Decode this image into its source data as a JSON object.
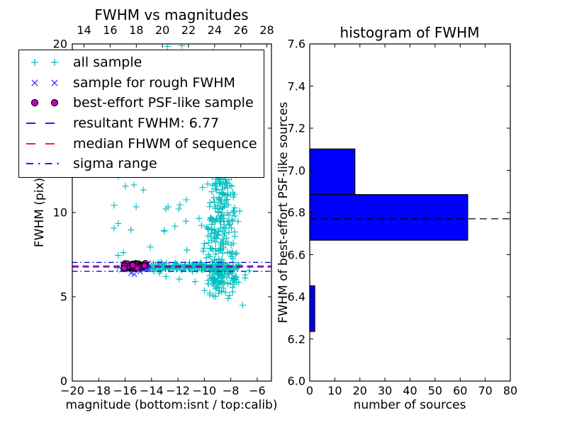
{
  "chart_data": [
    {
      "type": "scatter",
      "title": "FWHM vs magnitudes",
      "xlabel": "magnitude (bottom:isnt / top:calib)",
      "ylabel": "FWHM (pix)",
      "xlim": [
        -20,
        -4.92
      ],
      "ylim": [
        0,
        20
      ],
      "top_xlim": [
        13.1,
        28.35
      ],
      "grid": false,
      "x_ticks": {
        "values": [
          -20,
          -18,
          -16,
          -14,
          -12,
          -10,
          -8,
          -6
        ],
        "labels": [
          "−20",
          "−18",
          "−16",
          "−14",
          "−12",
          "−10",
          "−8",
          "−6"
        ]
      },
      "top_x_ticks": {
        "values": [
          14,
          16,
          18,
          20,
          22,
          24,
          26,
          28
        ],
        "labels": [
          "14",
          "16",
          "18",
          "20",
          "22",
          "24",
          "26",
          "28"
        ]
      },
      "y_ticks": {
        "values": [
          0,
          5,
          10,
          15,
          20
        ],
        "labels": [
          "0",
          "5",
          "10",
          "15",
          "20"
        ]
      },
      "legend_position": "upper-left",
      "legend": [
        {
          "label": "all sample",
          "type": "marker",
          "marker": "plus",
          "color": "#00bfbf"
        },
        {
          "label": "sample for rough FWHM",
          "type": "marker",
          "marker": "cross",
          "color": "#3333ff"
        },
        {
          "label": "best-effort PSF-like sample",
          "type": "marker",
          "marker": "circle",
          "color": "#bf00bf",
          "edge": "#000000"
        },
        {
          "label": "resultant FWHM: 6.77",
          "type": "line",
          "style": "dashed",
          "color": "#0000ff"
        },
        {
          "label": "median FHWM of sequence",
          "type": "line",
          "style": "dashed",
          "color": "#ff0000"
        },
        {
          "label": "sigma range",
          "type": "line",
          "style": "dashdot",
          "color": "#0000ff"
        }
      ],
      "hlines": [
        {
          "name": "sigma-high",
          "value": 7.04,
          "color": "#0000ff",
          "style": "dashdot"
        },
        {
          "name": "sigma-low",
          "value": 6.51,
          "color": "#0000ff",
          "style": "dashdot"
        },
        {
          "name": "resultant-fwhm",
          "value": 6.77,
          "color": "#0000ff",
          "style": "dashed"
        },
        {
          "name": "median-fwhm",
          "value": 6.83,
          "color": "#ff0000",
          "style": "dashed"
        }
      ],
      "series": [
        {
          "name": "all sample",
          "marker": "plus",
          "color": "#00bfbf",
          "seed": 42,
          "clusters": [
            {
              "shape": "band",
              "count": 150,
              "x": [
                -14.05,
                -7.35
              ],
              "y_mean": 6.78,
              "y_sd": 0.12
            },
            {
              "shape": "band",
              "count": 8,
              "x": [
                -16.7,
                -14.1
              ],
              "y_mean": 6.82,
              "y_sd": 0.1
            },
            {
              "shape": "gauss",
              "count": 335,
              "x_mean": -8.8,
              "x_sd": 0.55,
              "y_mean": 9.5,
              "y_sd": 3.6,
              "clip_x": [
                -10.5,
                -7.3
              ],
              "clip_y": [
                5.0,
                19.95
              ]
            },
            {
              "shape": "gauss",
              "count": 60,
              "x_mean": -8.6,
              "x_sd": 0.85,
              "y_mean": 6.3,
              "y_sd": 0.45,
              "clip_x": [
                -10.8,
                -6.9
              ],
              "clip_y": [
                5.2,
                7.4
              ]
            },
            {
              "shape": "uniform",
              "count": 22,
              "x": [
                -17.0,
                -11.3
              ],
              "y": [
                7.3,
                12.4
              ]
            },
            {
              "shape": "points",
              "pts": [
                [
                  -12.8,
                  19.85
                ],
                [
                  -11.7,
                  19.9
                ],
                [
                  -8.2,
                  4.9
                ],
                [
                  -7.1,
                  4.5
                ],
                [
                  -9.05,
                  5.55
                ],
                [
                  -7.85,
                  5.3
                ],
                [
                  -10.7,
                  5.9
                ],
                [
                  -12.9,
                  6.2
                ],
                [
                  -13.4,
                  6.4
                ],
                [
                  -11.9,
                  6.05
                ],
                [
                  -6.9,
                  6.3
                ],
                [
                  -7.4,
                  5.85
                ],
                [
                  -6.6,
                  6.55
                ]
              ]
            }
          ]
        },
        {
          "name": "sample for rough FWHM",
          "marker": "cross",
          "color": "#3333ff",
          "seed": 7,
          "clusters": [
            {
              "shape": "gauss",
              "count": 45,
              "x_mean": -15.3,
              "x_sd": 0.55,
              "y_mean": 6.75,
              "y_sd": 0.12,
              "clip_x": [
                -16.35,
                -14.15
              ],
              "clip_y": [
                6.45,
                7.1
              ]
            },
            {
              "shape": "points",
              "pts": [
                [
                  -15.55,
                  6.4
                ],
                [
                  -15.3,
                  6.33
                ],
                [
                  -14.25,
                  7.0
                ]
              ]
            }
          ]
        },
        {
          "name": "best-effort PSF-like sample",
          "marker": "circle",
          "color": "#bf00bf",
          "edge": "#000000",
          "seed": 99,
          "clusters": [
            {
              "shape": "gauss",
              "count": 80,
              "x_mean": -15.3,
              "x_sd": 0.55,
              "y_mean": 6.8,
              "y_sd": 0.08,
              "clip_x": [
                -16.2,
                -14.35
              ],
              "clip_y": [
                6.68,
                7.02
              ]
            }
          ]
        }
      ]
    },
    {
      "type": "bar",
      "orientation": "horizontal",
      "title": "histogram of FWHM",
      "xlabel": "number of sources",
      "ylabel": "FWHM of best-effort PSF-like sources",
      "xlim": [
        0,
        80
      ],
      "ylim": [
        6.0,
        7.6
      ],
      "grid": false,
      "x_ticks": {
        "values": [
          0,
          10,
          20,
          30,
          40,
          50,
          60,
          70,
          80
        ],
        "labels": [
          "0",
          "10",
          "20",
          "30",
          "40",
          "50",
          "60",
          "70",
          "80"
        ]
      },
      "y_ticks": {
        "values": [
          6.0,
          6.2,
          6.4,
          6.6,
          6.8,
          7.0,
          7.2,
          7.4,
          7.6
        ],
        "labels": [
          "6.0",
          "6.2",
          "6.4",
          "6.6",
          "6.8",
          "7.0",
          "7.2",
          "7.4",
          "7.6"
        ]
      },
      "bar_color": "#0000ff",
      "bar_edge": "#000000",
      "bins": [
        {
          "from": 6.2355,
          "to": 6.452,
          "count": 2
        },
        {
          "from": 6.452,
          "to": 6.6685,
          "count": 0
        },
        {
          "from": 6.6685,
          "to": 6.885,
          "count": 63
        },
        {
          "from": 6.885,
          "to": 7.1015,
          "count": 18
        }
      ],
      "hlines": [
        {
          "name": "resultant-fwhm",
          "value": 6.77,
          "color": "#000000",
          "style": "dashed"
        }
      ]
    }
  ]
}
